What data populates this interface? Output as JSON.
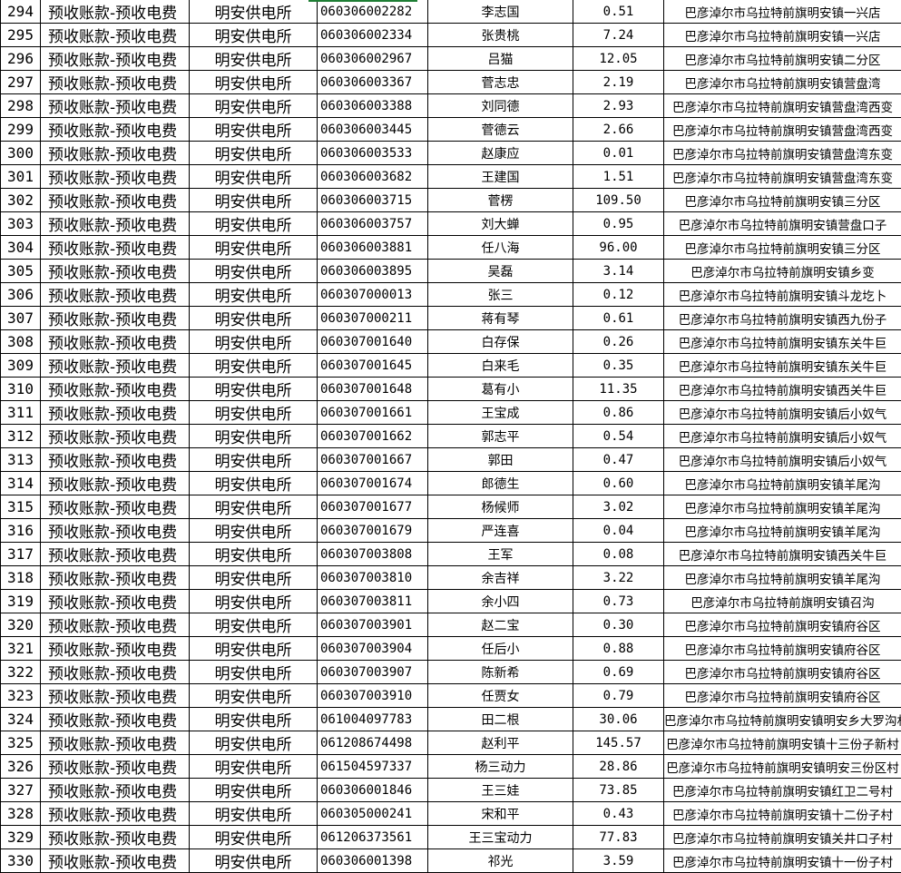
{
  "sheet": {
    "selection_color": "#1e7e34",
    "columns": [
      "index",
      "type",
      "office",
      "account",
      "name",
      "amount",
      "address"
    ],
    "rows": [
      [
        "294",
        "预收账款-预收电费",
        "明安供电所",
        "060306002282",
        "李志国",
        "0.51",
        "巴彦淖尔市乌拉特前旗明安镇一兴店"
      ],
      [
        "295",
        "预收账款-预收电费",
        "明安供电所",
        "060306002334",
        "张贵桃",
        "7.24",
        "巴彦淖尔市乌拉特前旗明安镇一兴店"
      ],
      [
        "296",
        "预收账款-预收电费",
        "明安供电所",
        "060306002967",
        "吕猫",
        "12.05",
        "巴彦淖尔市乌拉特前旗明安镇二分区"
      ],
      [
        "297",
        "预收账款-预收电费",
        "明安供电所",
        "060306003367",
        "菅志忠",
        "2.19",
        "巴彦淖尔市乌拉特前旗明安镇营盘湾"
      ],
      [
        "298",
        "预收账款-预收电费",
        "明安供电所",
        "060306003388",
        "刘同德",
        "2.93",
        "巴彦淖尔市乌拉特前旗明安镇营盘湾西变"
      ],
      [
        "299",
        "预收账款-预收电费",
        "明安供电所",
        "060306003445",
        "菅德云",
        "2.66",
        "巴彦淖尔市乌拉特前旗明安镇营盘湾西变"
      ],
      [
        "300",
        "预收账款-预收电费",
        "明安供电所",
        "060306003533",
        "赵康应",
        "0.01",
        "巴彦淖尔市乌拉特前旗明安镇营盘湾东变"
      ],
      [
        "301",
        "预收账款-预收电费",
        "明安供电所",
        "060306003682",
        "王建国",
        "1.51",
        "巴彦淖尔市乌拉特前旗明安镇营盘湾东变"
      ],
      [
        "302",
        "预收账款-预收电费",
        "明安供电所",
        "060306003715",
        "菅楞",
        "109.50",
        "巴彦淖尔市乌拉特前旗明安镇三分区"
      ],
      [
        "303",
        "预收账款-预收电费",
        "明安供电所",
        "060306003757",
        "刘大蝉",
        "0.95",
        "巴彦淖尔市乌拉特前旗明安镇营盘口子"
      ],
      [
        "304",
        "预收账款-预收电费",
        "明安供电所",
        "060306003881",
        "任八海",
        "96.00",
        "巴彦淖尔市乌拉特前旗明安镇三分区"
      ],
      [
        "305",
        "预收账款-预收电费",
        "明安供电所",
        "060306003895",
        "吴磊",
        "3.14",
        "巴彦淖尔市乌拉特前旗明安镇乡变"
      ],
      [
        "306",
        "预收账款-预收电费",
        "明安供电所",
        "060307000013",
        "张三",
        "0.12",
        "巴彦淖尔市乌拉特前旗明安镇斗龙圪卜"
      ],
      [
        "307",
        "预收账款-预收电费",
        "明安供电所",
        "060307000211",
        "蒋有琴",
        "0.61",
        "巴彦淖尔市乌拉特前旗明安镇西九份子"
      ],
      [
        "308",
        "预收账款-预收电费",
        "明安供电所",
        "060307001640",
        "白存保",
        "0.26",
        "巴彦淖尔市乌拉特前旗明安镇东关牛巨"
      ],
      [
        "309",
        "预收账款-预收电费",
        "明安供电所",
        "060307001645",
        "白来毛",
        "0.35",
        "巴彦淖尔市乌拉特前旗明安镇东关牛巨"
      ],
      [
        "310",
        "预收账款-预收电费",
        "明安供电所",
        "060307001648",
        "葛有小",
        "11.35",
        "巴彦淖尔市乌拉特前旗明安镇西关牛巨"
      ],
      [
        "311",
        "预收账款-预收电费",
        "明安供电所",
        "060307001661",
        "王宝成",
        "0.86",
        "巴彦淖尔市乌拉特前旗明安镇后小奴气"
      ],
      [
        "312",
        "预收账款-预收电费",
        "明安供电所",
        "060307001662",
        "郭志平",
        "0.54",
        "巴彦淖尔市乌拉特前旗明安镇后小奴气"
      ],
      [
        "313",
        "预收账款-预收电费",
        "明安供电所",
        "060307001667",
        "郭田",
        "0.47",
        "巴彦淖尔市乌拉特前旗明安镇后小奴气"
      ],
      [
        "314",
        "预收账款-预收电费",
        "明安供电所",
        "060307001674",
        "郎德生",
        "0.60",
        "巴彦淖尔市乌拉特前旗明安镇羊尾沟"
      ],
      [
        "315",
        "预收账款-预收电费",
        "明安供电所",
        "060307001677",
        "杨候师",
        "3.02",
        "巴彦淖尔市乌拉特前旗明安镇羊尾沟"
      ],
      [
        "316",
        "预收账款-预收电费",
        "明安供电所",
        "060307001679",
        "严连喜",
        "0.04",
        "巴彦淖尔市乌拉特前旗明安镇羊尾沟"
      ],
      [
        "317",
        "预收账款-预收电费",
        "明安供电所",
        "060307003808",
        "王军",
        "0.08",
        "巴彦淖尔市乌拉特前旗明安镇西关牛巨"
      ],
      [
        "318",
        "预收账款-预收电费",
        "明安供电所",
        "060307003810",
        "余吉祥",
        "3.22",
        "巴彦淖尔市乌拉特前旗明安镇羊尾沟"
      ],
      [
        "319",
        "预收账款-预收电费",
        "明安供电所",
        "060307003811",
        "余小四",
        "0.73",
        "巴彦淖尔市乌拉特前旗明安镇召沟"
      ],
      [
        "320",
        "预收账款-预收电费",
        "明安供电所",
        "060307003901",
        "赵二宝",
        "0.30",
        "巴彦淖尔市乌拉特前旗明安镇府谷区"
      ],
      [
        "321",
        "预收账款-预收电费",
        "明安供电所",
        "060307003904",
        "任后小",
        "0.88",
        "巴彦淖尔市乌拉特前旗明安镇府谷区"
      ],
      [
        "322",
        "预收账款-预收电费",
        "明安供电所",
        "060307003907",
        "陈新希",
        "0.69",
        "巴彦淖尔市乌拉特前旗明安镇府谷区"
      ],
      [
        "323",
        "预收账款-预收电费",
        "明安供电所",
        "060307003910",
        "任贾女",
        "0.79",
        "巴彦淖尔市乌拉特前旗明安镇府谷区"
      ],
      [
        "324",
        "预收账款-预收电费",
        "明安供电所",
        "061004097783",
        "田二根",
        "30.06",
        "巴彦淖尔市乌拉特前旗明安镇明安乡大罗沟村"
      ],
      [
        "325",
        "预收账款-预收电费",
        "明安供电所",
        "061208674498",
        "赵利平",
        "145.57",
        "巴彦淖尔市乌拉特前旗明安镇十三份子新村"
      ],
      [
        "326",
        "预收账款-预收电费",
        "明安供电所",
        "061504597337",
        "杨三动力",
        "28.86",
        "巴彦淖尔市乌拉特前旗明安镇明安三份区村"
      ],
      [
        "327",
        "预收账款-预收电费",
        "明安供电所",
        "060306001846",
        "王三娃",
        "73.85",
        "巴彦淖尔市乌拉特前旗明安镇红卫二号村"
      ],
      [
        "328",
        "预收账款-预收电费",
        "明安供电所",
        "060305000241",
        "宋和平",
        "0.43",
        "巴彦淖尔市乌拉特前旗明安镇十二份子村"
      ],
      [
        "329",
        "预收账款-预收电费",
        "明安供电所",
        "061206373561",
        "王三宝动力",
        "77.83",
        "巴彦淖尔市乌拉特前旗明安镇关井口子村"
      ],
      [
        "330",
        "预收账款-预收电费",
        "明安供电所",
        "060306001398",
        "祁光",
        "3.59",
        "巴彦淖尔市乌拉特前旗明安镇十一份子村"
      ]
    ]
  }
}
